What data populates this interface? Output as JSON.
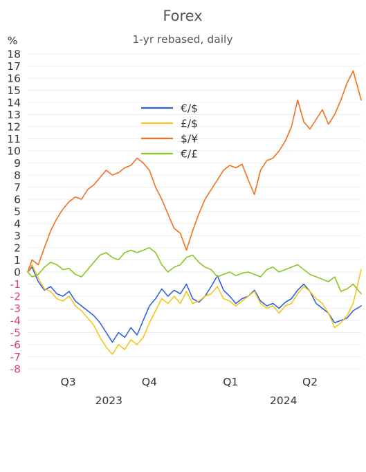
{
  "chart_data": {
    "type": "line",
    "title": "Forex",
    "subtitle": "1-yr rebased, daily",
    "ylabel": "%",
    "ylim": [
      -8,
      18
    ],
    "yticks": [
      18,
      17,
      16,
      15,
      14,
      13,
      12,
      11,
      10,
      9,
      8,
      7,
      6,
      5,
      4,
      3,
      2,
      1,
      0,
      -1,
      -2,
      -3,
      -4,
      -5,
      -6,
      -7,
      -8
    ],
    "grid": true,
    "legend_position": "upper-center",
    "colors": {
      "positive_tick": "#333333",
      "negative_tick": "#d6436f",
      "grid": "#ececec"
    },
    "x_quarter_labels": [
      {
        "label": "Q3",
        "x": "2023-08-15"
      },
      {
        "label": "Q4",
        "x": "2023-11-15"
      },
      {
        "label": "Q1",
        "x": "2024-02-15"
      },
      {
        "label": "Q2",
        "x": "2024-05-15"
      }
    ],
    "x_year_labels": [
      {
        "label": "2023",
        "x": "2023-09-30"
      },
      {
        "label": "2024",
        "x": "2024-04-15"
      }
    ],
    "x_range": [
      "2023-06-30",
      "2024-07-12"
    ],
    "series": [
      {
        "name": "€/$",
        "color": "#2d5fe0",
        "points": [
          [
            "2023-06-30",
            0.0
          ],
          [
            "2023-07-05",
            0.4
          ],
          [
            "2023-07-12",
            -0.8
          ],
          [
            "2023-07-19",
            -1.5
          ],
          [
            "2023-07-26",
            -1.2
          ],
          [
            "2023-08-02",
            -1.8
          ],
          [
            "2023-08-09",
            -2.0
          ],
          [
            "2023-08-16",
            -1.6
          ],
          [
            "2023-08-23",
            -2.4
          ],
          [
            "2023-08-30",
            -2.8
          ],
          [
            "2023-09-06",
            -3.2
          ],
          [
            "2023-09-13",
            -3.6
          ],
          [
            "2023-09-20",
            -4.2
          ],
          [
            "2023-09-27",
            -5.0
          ],
          [
            "2023-10-04",
            -5.8
          ],
          [
            "2023-10-11",
            -5.0
          ],
          [
            "2023-10-18",
            -5.4
          ],
          [
            "2023-10-25",
            -4.6
          ],
          [
            "2023-11-01",
            -5.2
          ],
          [
            "2023-11-08",
            -4.0
          ],
          [
            "2023-11-15",
            -2.8
          ],
          [
            "2023-11-22",
            -2.2
          ],
          [
            "2023-11-29",
            -1.4
          ],
          [
            "2023-12-06",
            -2.0
          ],
          [
            "2023-12-13",
            -1.5
          ],
          [
            "2023-12-20",
            -1.8
          ],
          [
            "2023-12-27",
            -1.0
          ],
          [
            "2024-01-03",
            -2.2
          ],
          [
            "2024-01-10",
            -2.5
          ],
          [
            "2024-01-17",
            -2.0
          ],
          [
            "2024-01-24",
            -1.2
          ],
          [
            "2024-01-31",
            -0.3
          ],
          [
            "2024-02-07",
            -1.5
          ],
          [
            "2024-02-14",
            -2.0
          ],
          [
            "2024-02-21",
            -2.6
          ],
          [
            "2024-02-28",
            -2.2
          ],
          [
            "2024-03-06",
            -2.0
          ],
          [
            "2024-03-13",
            -1.5
          ],
          [
            "2024-03-20",
            -2.4
          ],
          [
            "2024-03-27",
            -2.8
          ],
          [
            "2024-04-03",
            -2.6
          ],
          [
            "2024-04-10",
            -3.0
          ],
          [
            "2024-04-17",
            -2.5
          ],
          [
            "2024-04-24",
            -2.2
          ],
          [
            "2024-05-01",
            -1.5
          ],
          [
            "2024-05-08",
            -1.0
          ],
          [
            "2024-05-15",
            -1.6
          ],
          [
            "2024-05-22",
            -2.6
          ],
          [
            "2024-05-29",
            -3.0
          ],
          [
            "2024-06-05",
            -3.4
          ],
          [
            "2024-06-12",
            -4.2
          ],
          [
            "2024-06-19",
            -4.0
          ],
          [
            "2024-06-26",
            -3.8
          ],
          [
            "2024-07-03",
            -3.2
          ],
          [
            "2024-07-12",
            -2.8
          ]
        ]
      },
      {
        "name": "£/$",
        "color": "#f5c518",
        "points": [
          [
            "2023-06-30",
            0.0
          ],
          [
            "2023-07-05",
            0.6
          ],
          [
            "2023-07-12",
            -0.5
          ],
          [
            "2023-07-19",
            -1.4
          ],
          [
            "2023-07-26",
            -1.6
          ],
          [
            "2023-08-02",
            -2.2
          ],
          [
            "2023-08-09",
            -2.4
          ],
          [
            "2023-08-16",
            -2.0
          ],
          [
            "2023-08-23",
            -2.8
          ],
          [
            "2023-08-30",
            -3.2
          ],
          [
            "2023-09-06",
            -3.8
          ],
          [
            "2023-09-13",
            -4.4
          ],
          [
            "2023-09-20",
            -5.4
          ],
          [
            "2023-09-27",
            -6.2
          ],
          [
            "2023-10-04",
            -6.8
          ],
          [
            "2023-10-11",
            -6.0
          ],
          [
            "2023-10-18",
            -6.4
          ],
          [
            "2023-10-25",
            -5.6
          ],
          [
            "2023-11-01",
            -6.0
          ],
          [
            "2023-11-08",
            -5.4
          ],
          [
            "2023-11-15",
            -4.2
          ],
          [
            "2023-11-22",
            -3.2
          ],
          [
            "2023-11-29",
            -2.2
          ],
          [
            "2023-12-06",
            -2.6
          ],
          [
            "2023-12-13",
            -2.0
          ],
          [
            "2023-12-20",
            -2.6
          ],
          [
            "2023-12-27",
            -1.6
          ],
          [
            "2024-01-03",
            -2.6
          ],
          [
            "2024-01-10",
            -2.4
          ],
          [
            "2024-01-17",
            -2.0
          ],
          [
            "2024-01-24",
            -1.8
          ],
          [
            "2024-01-31",
            -1.2
          ],
          [
            "2024-02-07",
            -2.2
          ],
          [
            "2024-02-14",
            -2.4
          ],
          [
            "2024-02-21",
            -2.8
          ],
          [
            "2024-02-28",
            -2.4
          ],
          [
            "2024-03-06",
            -2.0
          ],
          [
            "2024-03-13",
            -1.6
          ],
          [
            "2024-03-20",
            -2.6
          ],
          [
            "2024-03-27",
            -3.0
          ],
          [
            "2024-04-03",
            -2.8
          ],
          [
            "2024-04-10",
            -3.4
          ],
          [
            "2024-04-17",
            -2.8
          ],
          [
            "2024-04-24",
            -2.6
          ],
          [
            "2024-05-01",
            -1.8
          ],
          [
            "2024-05-08",
            -1.2
          ],
          [
            "2024-05-15",
            -1.6
          ],
          [
            "2024-05-22",
            -2.2
          ],
          [
            "2024-05-29",
            -2.6
          ],
          [
            "2024-06-05",
            -3.4
          ],
          [
            "2024-06-12",
            -4.6
          ],
          [
            "2024-06-19",
            -4.2
          ],
          [
            "2024-06-26",
            -3.6
          ],
          [
            "2024-07-03",
            -2.6
          ],
          [
            "2024-07-12",
            0.2
          ]
        ]
      },
      {
        "name": "$/¥",
        "color": "#f26d1c",
        "points": [
          [
            "2023-06-30",
            0.0
          ],
          [
            "2023-07-05",
            1.0
          ],
          [
            "2023-07-12",
            0.6
          ],
          [
            "2023-07-19",
            2.0
          ],
          [
            "2023-07-26",
            3.4
          ],
          [
            "2023-08-02",
            4.4
          ],
          [
            "2023-08-09",
            5.2
          ],
          [
            "2023-08-16",
            5.8
          ],
          [
            "2023-08-23",
            6.2
          ],
          [
            "2023-08-30",
            6.0
          ],
          [
            "2023-09-06",
            6.8
          ],
          [
            "2023-09-13",
            7.2
          ],
          [
            "2023-09-20",
            7.8
          ],
          [
            "2023-09-27",
            8.4
          ],
          [
            "2023-10-04",
            8.0
          ],
          [
            "2023-10-11",
            8.2
          ],
          [
            "2023-10-18",
            8.6
          ],
          [
            "2023-10-25",
            8.8
          ],
          [
            "2023-11-01",
            9.4
          ],
          [
            "2023-11-08",
            9.0
          ],
          [
            "2023-11-15",
            8.4
          ],
          [
            "2023-11-22",
            7.0
          ],
          [
            "2023-11-29",
            6.0
          ],
          [
            "2023-12-06",
            4.8
          ],
          [
            "2023-12-13",
            3.6
          ],
          [
            "2023-12-20",
            3.2
          ],
          [
            "2023-12-27",
            1.8
          ],
          [
            "2024-01-03",
            3.4
          ],
          [
            "2024-01-10",
            4.8
          ],
          [
            "2024-01-17",
            6.0
          ],
          [
            "2024-01-24",
            6.8
          ],
          [
            "2024-01-31",
            7.6
          ],
          [
            "2024-02-07",
            8.4
          ],
          [
            "2024-02-14",
            8.8
          ],
          [
            "2024-02-21",
            8.6
          ],
          [
            "2024-02-28",
            8.9
          ],
          [
            "2024-03-06",
            7.6
          ],
          [
            "2024-03-13",
            6.4
          ],
          [
            "2024-03-20",
            8.4
          ],
          [
            "2024-03-27",
            9.2
          ],
          [
            "2024-04-03",
            9.4
          ],
          [
            "2024-04-10",
            10.0
          ],
          [
            "2024-04-17",
            10.8
          ],
          [
            "2024-04-24",
            12.0
          ],
          [
            "2024-05-01",
            14.2
          ],
          [
            "2024-05-08",
            12.4
          ],
          [
            "2024-05-15",
            11.8
          ],
          [
            "2024-05-22",
            12.6
          ],
          [
            "2024-05-29",
            13.4
          ],
          [
            "2024-06-05",
            12.2
          ],
          [
            "2024-06-12",
            13.0
          ],
          [
            "2024-06-19",
            14.2
          ],
          [
            "2024-06-26",
            15.6
          ],
          [
            "2024-07-03",
            16.6
          ],
          [
            "2024-07-12",
            14.2
          ]
        ]
      },
      {
        "name": "€/£",
        "color": "#8bc51f",
        "points": [
          [
            "2023-06-30",
            0.0
          ],
          [
            "2023-07-05",
            -0.4
          ],
          [
            "2023-07-12",
            -0.2
          ],
          [
            "2023-07-19",
            0.4
          ],
          [
            "2023-07-26",
            0.8
          ],
          [
            "2023-08-02",
            0.6
          ],
          [
            "2023-08-09",
            0.2
          ],
          [
            "2023-08-16",
            0.3
          ],
          [
            "2023-08-23",
            -0.2
          ],
          [
            "2023-08-30",
            -0.4
          ],
          [
            "2023-09-06",
            0.2
          ],
          [
            "2023-09-13",
            0.8
          ],
          [
            "2023-09-20",
            1.4
          ],
          [
            "2023-09-27",
            1.6
          ],
          [
            "2023-10-04",
            1.2
          ],
          [
            "2023-10-11",
            1.0
          ],
          [
            "2023-10-18",
            1.6
          ],
          [
            "2023-10-25",
            1.8
          ],
          [
            "2023-11-01",
            1.6
          ],
          [
            "2023-11-08",
            1.8
          ],
          [
            "2023-11-15",
            2.0
          ],
          [
            "2023-11-22",
            1.6
          ],
          [
            "2023-11-29",
            0.6
          ],
          [
            "2023-12-06",
            0.0
          ],
          [
            "2023-12-13",
            0.4
          ],
          [
            "2023-12-20",
            0.6
          ],
          [
            "2023-12-27",
            1.2
          ],
          [
            "2024-01-03",
            1.4
          ],
          [
            "2024-01-10",
            0.8
          ],
          [
            "2024-01-17",
            0.4
          ],
          [
            "2024-01-24",
            0.2
          ],
          [
            "2024-01-31",
            -0.4
          ],
          [
            "2024-02-07",
            -0.2
          ],
          [
            "2024-02-14",
            0.0
          ],
          [
            "2024-02-21",
            -0.3
          ],
          [
            "2024-02-28",
            -0.1
          ],
          [
            "2024-03-06",
            0.0
          ],
          [
            "2024-03-13",
            -0.2
          ],
          [
            "2024-03-20",
            -0.4
          ],
          [
            "2024-03-27",
            0.2
          ],
          [
            "2024-04-03",
            0.4
          ],
          [
            "2024-04-10",
            0.0
          ],
          [
            "2024-04-17",
            0.2
          ],
          [
            "2024-04-24",
            0.4
          ],
          [
            "2024-05-01",
            0.6
          ],
          [
            "2024-05-08",
            0.2
          ],
          [
            "2024-05-15",
            -0.2
          ],
          [
            "2024-05-22",
            -0.4
          ],
          [
            "2024-05-29",
            -0.6
          ],
          [
            "2024-06-05",
            -0.8
          ],
          [
            "2024-06-12",
            -0.4
          ],
          [
            "2024-06-19",
            -1.6
          ],
          [
            "2024-06-26",
            -1.4
          ],
          [
            "2024-07-03",
            -1.0
          ],
          [
            "2024-07-12",
            -1.8
          ]
        ]
      }
    ]
  }
}
